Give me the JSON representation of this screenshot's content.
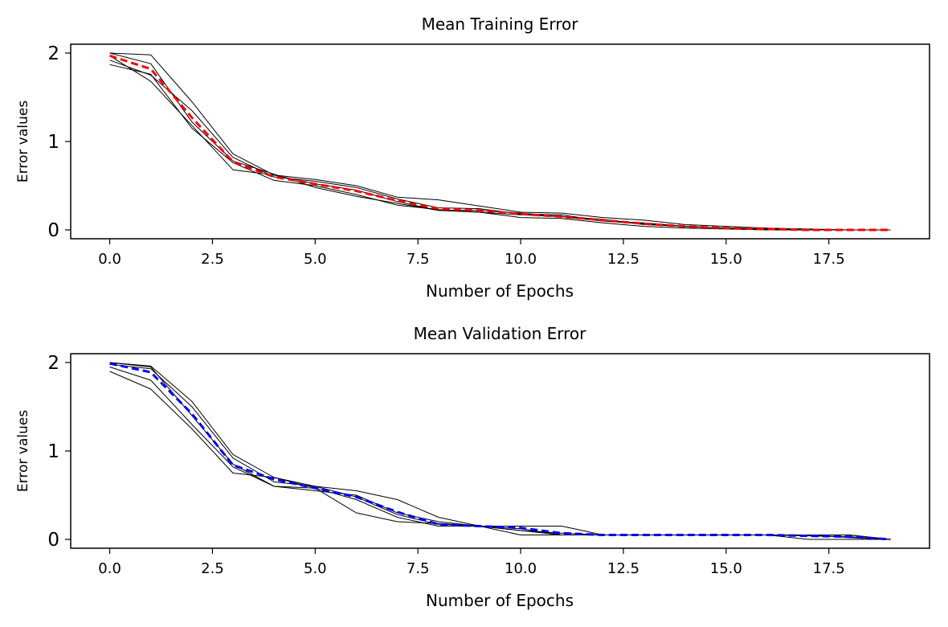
{
  "chart_data": [
    {
      "type": "line",
      "title": "Mean Training Error",
      "xlabel": "Number of Epochs",
      "ylabel": "Error values",
      "xlim": [
        -0.95,
        19.95
      ],
      "ylim": [
        -0.1,
        2.1
      ],
      "xticks": [
        "0.0",
        "2.5",
        "5.0",
        "7.5",
        "10.0",
        "12.5",
        "15.0",
        "17.5"
      ],
      "yticks": [
        "0",
        "1",
        "2"
      ],
      "x": [
        0,
        1,
        2,
        3,
        4,
        5,
        6,
        7,
        8,
        9,
        10,
        11,
        12,
        13,
        14,
        15,
        16,
        17,
        18,
        19
      ],
      "runs": [
        [
          2.0,
          1.98,
          1.45,
          0.86,
          0.62,
          0.57,
          0.5,
          0.37,
          0.34,
          0.27,
          0.2,
          0.19,
          0.14,
          0.11,
          0.06,
          0.04,
          0.02,
          0.01,
          0.0,
          0.0
        ],
        [
          1.97,
          1.68,
          1.18,
          0.68,
          0.62,
          0.52,
          0.45,
          0.32,
          0.22,
          0.22,
          0.19,
          0.15,
          0.12,
          0.06,
          0.04,
          0.02,
          0.01,
          0.0,
          0.0,
          0.0
        ],
        [
          1.92,
          1.75,
          1.35,
          0.82,
          0.6,
          0.55,
          0.48,
          0.35,
          0.25,
          0.24,
          0.18,
          0.17,
          0.1,
          0.08,
          0.04,
          0.02,
          0.01,
          0.0,
          0.0,
          0.0
        ],
        [
          1.87,
          1.76,
          1.15,
          0.76,
          0.56,
          0.5,
          0.4,
          0.28,
          0.23,
          0.2,
          0.14,
          0.13,
          0.08,
          0.04,
          0.02,
          0.01,
          0.0,
          0.0,
          0.0,
          0.0
        ],
        [
          2.0,
          1.88,
          1.22,
          0.78,
          0.63,
          0.48,
          0.38,
          0.3,
          0.22,
          0.2,
          0.17,
          0.15,
          0.1,
          0.07,
          0.04,
          0.02,
          0.0,
          0.0,
          0.0,
          0.0
        ]
      ],
      "mean": [
        1.97,
        1.82,
        1.27,
        0.77,
        0.6,
        0.52,
        0.44,
        0.33,
        0.24,
        0.22,
        0.18,
        0.15,
        0.11,
        0.07,
        0.04,
        0.02,
        0.01,
        0.0,
        0.0,
        0.0
      ],
      "run_color": "#000000",
      "mean_color": "#ff0000",
      "mean_style": "dashed"
    },
    {
      "type": "line",
      "title": "Mean Validation Error",
      "xlabel": "Number of Epochs",
      "ylabel": "Error values",
      "xlim": [
        -0.95,
        19.95
      ],
      "ylim": [
        -0.1,
        2.1
      ],
      "xticks": [
        "0.0",
        "2.5",
        "5.0",
        "7.5",
        "10.0",
        "12.5",
        "15.0",
        "17.5"
      ],
      "yticks": [
        "0",
        "1",
        "2"
      ],
      "x": [
        0,
        1,
        2,
        3,
        4,
        5,
        6,
        7,
        8,
        9,
        10,
        11,
        12,
        13,
        14,
        15,
        16,
        17,
        18,
        19
      ],
      "runs": [
        [
          2.0,
          1.96,
          1.56,
          0.96,
          0.7,
          0.6,
          0.55,
          0.45,
          0.25,
          0.15,
          0.15,
          0.15,
          0.05,
          0.05,
          0.05,
          0.05,
          0.05,
          0.05,
          0.05,
          0.0
        ],
        [
          1.9,
          1.7,
          1.25,
          0.75,
          0.7,
          0.58,
          0.3,
          0.2,
          0.18,
          0.15,
          0.05,
          0.05,
          0.05,
          0.05,
          0.05,
          0.05,
          0.05,
          0.0,
          0.0,
          0.0
        ],
        [
          1.95,
          1.8,
          1.3,
          0.82,
          0.6,
          0.55,
          0.5,
          0.3,
          0.2,
          0.15,
          0.1,
          0.05,
          0.05,
          0.05,
          0.05,
          0.05,
          0.05,
          0.05,
          0.02,
          0.0
        ],
        [
          2.0,
          1.95,
          1.4,
          0.85,
          0.6,
          0.58,
          0.45,
          0.25,
          0.15,
          0.15,
          0.12,
          0.05,
          0.05,
          0.05,
          0.05,
          0.05,
          0.05,
          0.05,
          0.05,
          0.0
        ],
        [
          1.98,
          1.93,
          1.5,
          0.92,
          0.65,
          0.6,
          0.48,
          0.28,
          0.17,
          0.15,
          0.1,
          0.07,
          0.05,
          0.05,
          0.05,
          0.05,
          0.05,
          0.04,
          0.03,
          0.0
        ]
      ],
      "mean": [
        1.99,
        1.89,
        1.42,
        0.84,
        0.68,
        0.58,
        0.48,
        0.31,
        0.17,
        0.15,
        0.13,
        0.07,
        0.05,
        0.05,
        0.05,
        0.05,
        0.05,
        0.04,
        0.03,
        0.0
      ],
      "run_color": "#000000",
      "mean_color": "#0000ff",
      "mean_style": "dashed"
    }
  ]
}
